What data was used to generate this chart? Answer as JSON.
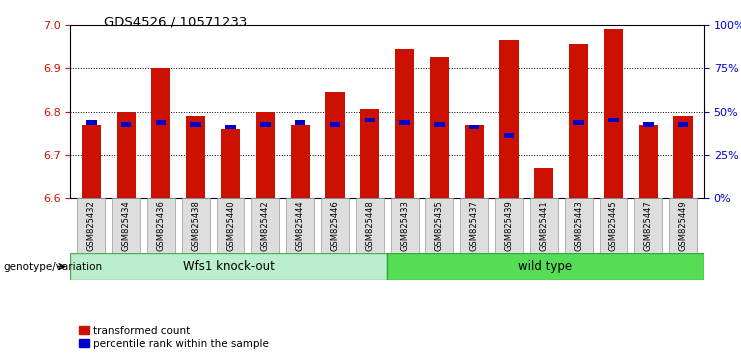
{
  "title": "GDS4526 / 10571233",
  "samples": [
    "GSM825432",
    "GSM825434",
    "GSM825436",
    "GSM825438",
    "GSM825440",
    "GSM825442",
    "GSM825444",
    "GSM825446",
    "GSM825448",
    "GSM825433",
    "GSM825435",
    "GSM825437",
    "GSM825439",
    "GSM825441",
    "GSM825443",
    "GSM825445",
    "GSM825447",
    "GSM825449"
  ],
  "red_values": [
    6.77,
    6.8,
    6.9,
    6.79,
    6.76,
    6.8,
    6.77,
    6.845,
    6.805,
    6.945,
    6.925,
    6.77,
    6.965,
    6.67,
    6.955,
    6.99,
    6.77,
    6.79
  ],
  "blue_values": [
    6.775,
    6.77,
    6.775,
    6.77,
    6.765,
    6.77,
    6.775,
    6.77,
    6.78,
    6.775,
    6.77,
    6.765,
    6.745,
    null,
    6.775,
    6.78,
    6.77,
    6.77
  ],
  "ymin": 6.6,
  "ymax": 7.0,
  "yticks_left": [
    6.6,
    6.7,
    6.8,
    6.9,
    7.0
  ],
  "yticks_right_pct": [
    0,
    25,
    50,
    75,
    100
  ],
  "ytick_labels_right": [
    "0%",
    "25%",
    "50%",
    "75%",
    "100%"
  ],
  "grid_lines": [
    6.7,
    6.8,
    6.9
  ],
  "bar_color": "#CC1100",
  "blue_color": "#0000CC",
  "knockout_label": "Wfs1 knock-out",
  "wildtype_label": "wild type",
  "genotype_label": "genotype/variation",
  "legend_red": "transformed count",
  "legend_blue": "percentile rank within the sample",
  "knockout_color": "#BBEECC",
  "wildtype_color": "#55DD55",
  "n_knockout": 9,
  "n_wildtype": 9,
  "bar_width": 0.55
}
